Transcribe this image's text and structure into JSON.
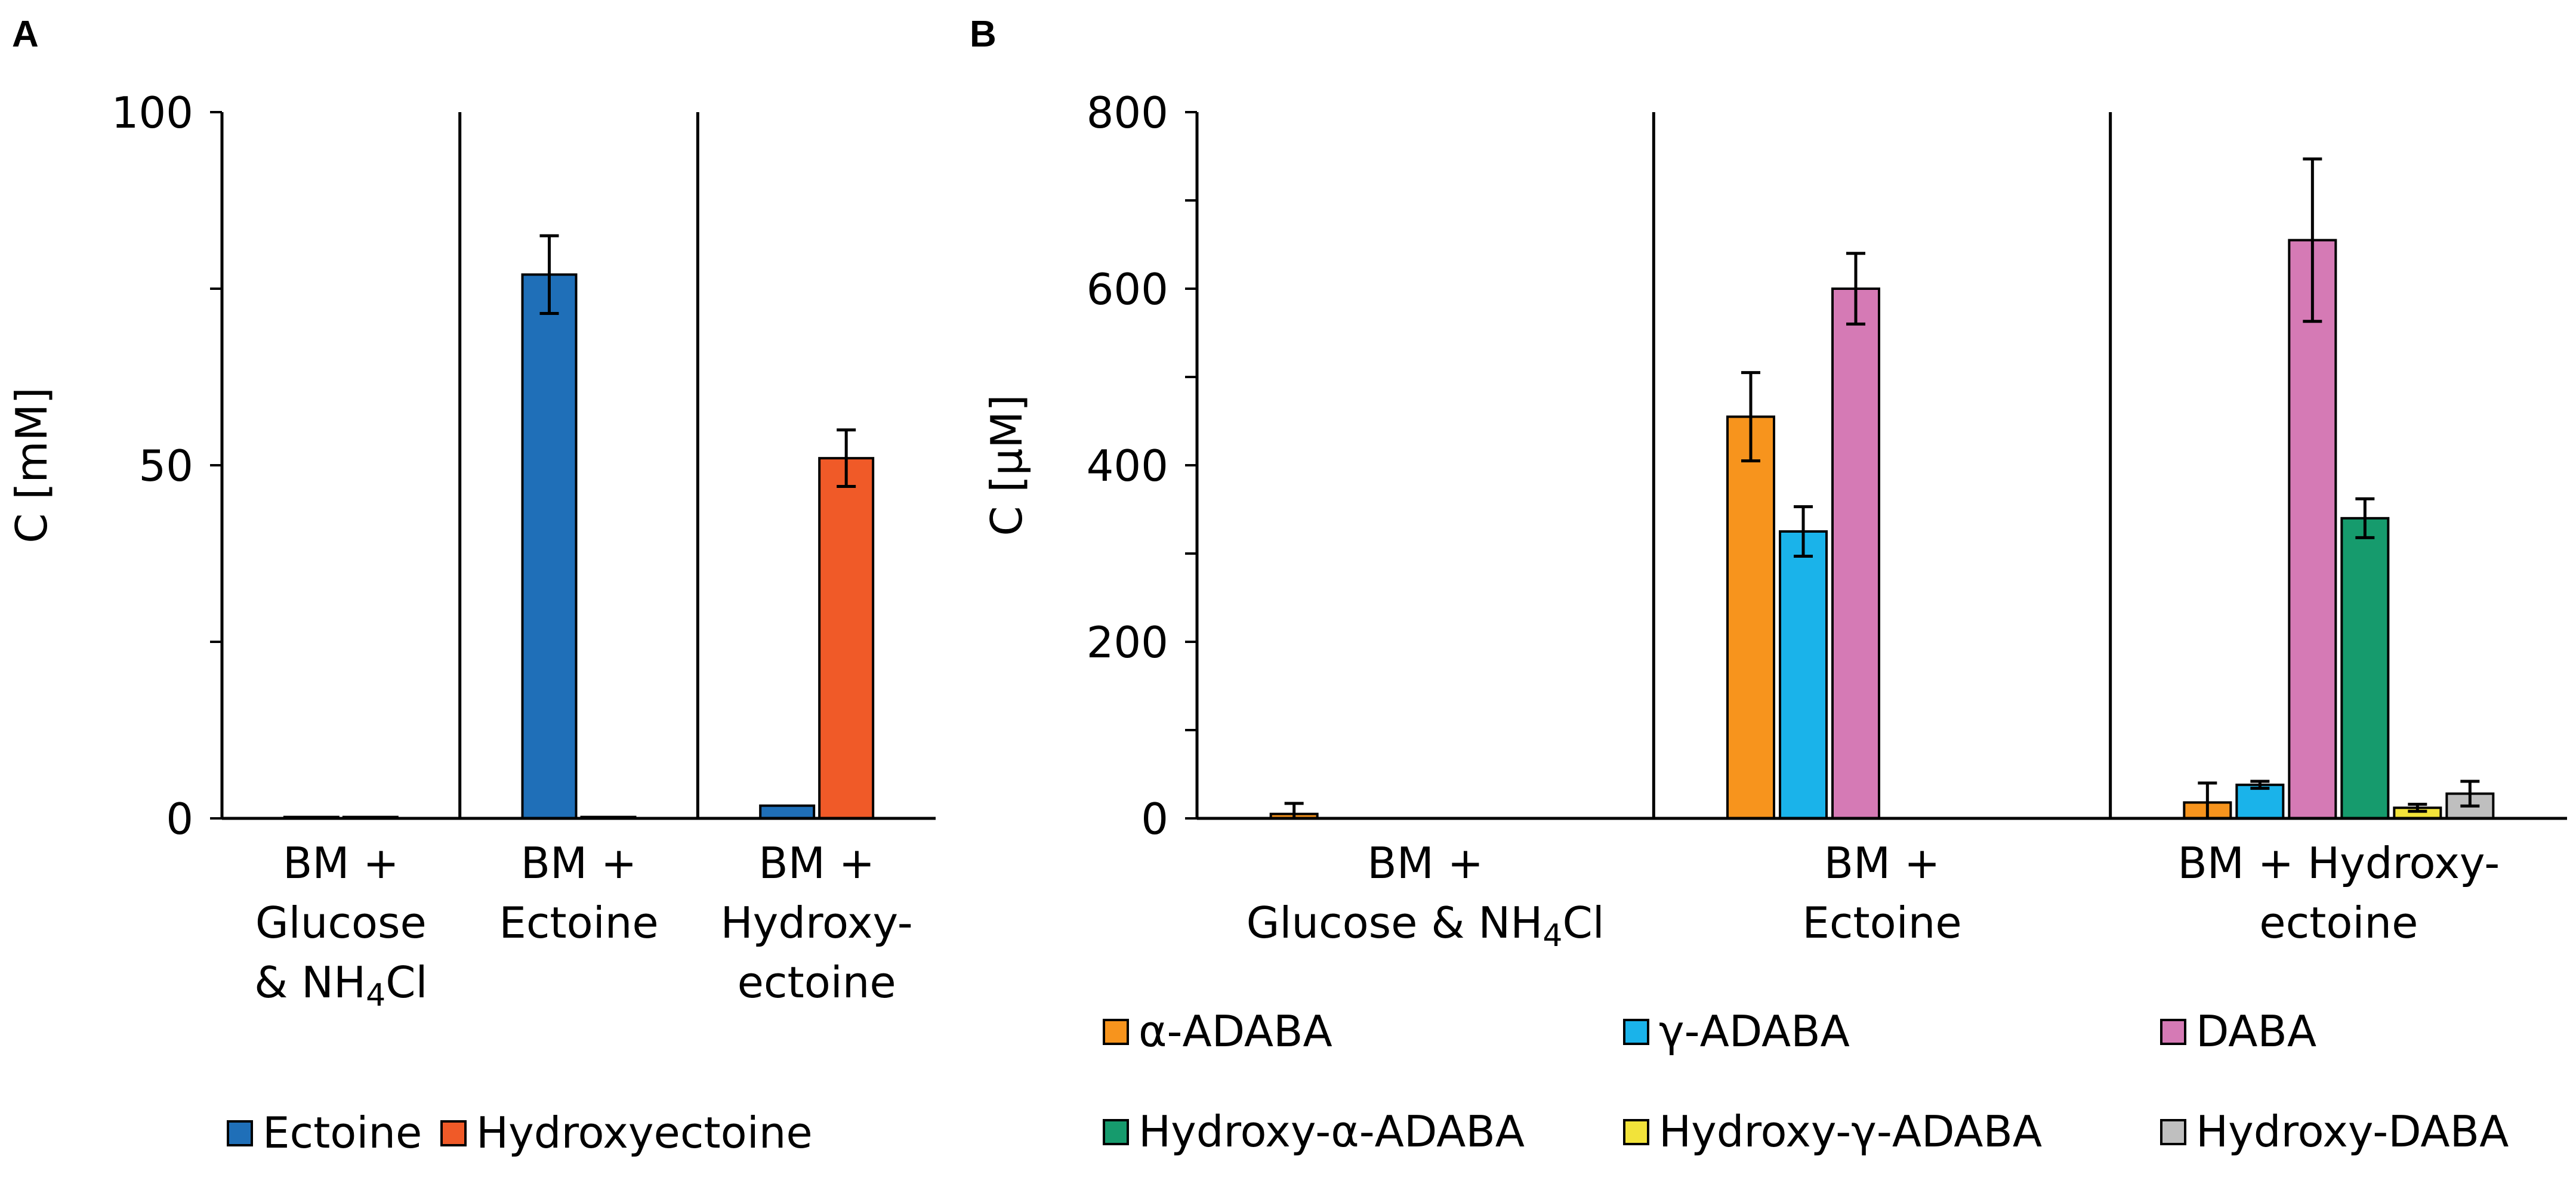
{
  "chart_data": [
    {
      "panel": "A",
      "type": "bar",
      "ylabel": "C [mM]",
      "ylim": [
        0,
        100
      ],
      "yticks": [
        "0",
        "50",
        "100"
      ],
      "groups": [
        [
          "BM +",
          "Glucose",
          "& NH4Cl"
        ],
        [
          "BM +",
          "Ectoine"
        ],
        [
          "BM +",
          "Hydroxy-",
          "ectoine"
        ]
      ],
      "series": [
        {
          "name": "Ectoine",
          "color": "#1f6fb8",
          "values": [
            0.2,
            77,
            1.8
          ],
          "errors": [
            0,
            5.5,
            0
          ]
        },
        {
          "name": "Hydroxyectoine",
          "color": "#f05a28",
          "values": [
            0.2,
            0.2,
            51
          ],
          "errors": [
            0,
            0,
            4
          ]
        }
      ]
    },
    {
      "panel": "B",
      "type": "bar",
      "ylabel": "C [μM]",
      "ylim": [
        0,
        800
      ],
      "yticks": [
        "0",
        "200",
        "400",
        "600",
        "800"
      ],
      "groups": [
        [
          "BM +",
          "Glucose & NH4Cl"
        ],
        [
          "BM +",
          "Ectoine"
        ],
        [
          "BM + Hydroxy-",
          "ectoine"
        ]
      ],
      "series": [
        {
          "name": "α-ADABA",
          "color": "#f7941d",
          "values": [
            5,
            455,
            18
          ],
          "errors": [
            12,
            50,
            22
          ]
        },
        {
          "name": "γ-ADABA",
          "color": "#1ab3ea",
          "values": [
            0,
            325,
            38
          ],
          "errors": [
            0,
            28,
            4
          ]
        },
        {
          "name": "DABA",
          "color": "#d57ab5",
          "values": [
            0,
            600,
            655
          ],
          "errors": [
            0,
            40,
            92
          ]
        },
        {
          "name": "Hydroxy-α-ADABA",
          "color": "#169b6d",
          "values": [
            0,
            0,
            340
          ],
          "errors": [
            0,
            0,
            22
          ]
        },
        {
          "name": "Hydroxy-γ-ADABA",
          "color": "#f2e33a",
          "values": [
            0,
            0,
            12
          ],
          "errors": [
            0,
            0,
            4
          ]
        },
        {
          "name": "Hydroxy-DABA",
          "color": "#bfbfbf",
          "values": [
            0,
            0,
            28
          ],
          "errors": [
            0,
            0,
            14
          ]
        }
      ]
    }
  ]
}
